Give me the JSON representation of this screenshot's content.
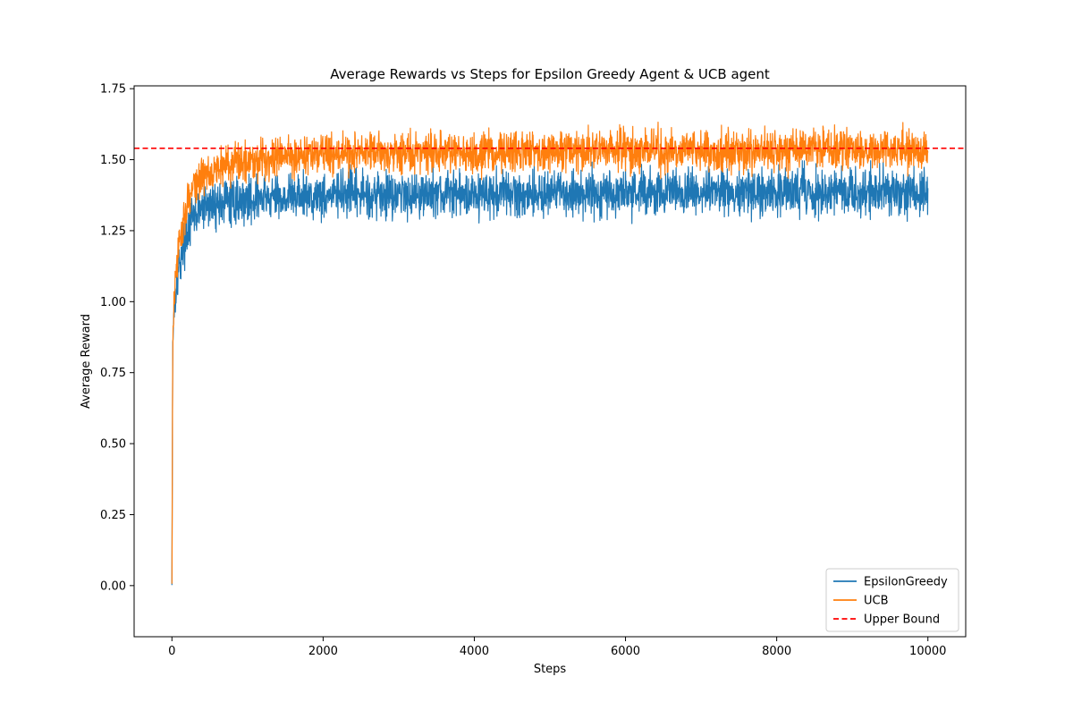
{
  "chart_data": {
    "type": "line",
    "title": "Average Rewards vs Steps for Epsilon Greedy Agent & UCB agent",
    "xlabel": "Steps",
    "ylabel": "Average Reward",
    "xlim": [
      -500,
      10500
    ],
    "ylim": [
      -0.18,
      1.76
    ],
    "xticks": [
      0,
      2000,
      4000,
      6000,
      8000,
      10000
    ],
    "xtick_labels": [
      "0",
      "2000",
      "4000",
      "6000",
      "8000",
      "10000"
    ],
    "yticks": [
      0.0,
      0.25,
      0.5,
      0.75,
      1.0,
      1.25,
      1.5,
      1.75
    ],
    "ytick_labels": [
      "0.00",
      "0.25",
      "0.50",
      "0.75",
      "1.00",
      "1.25",
      "1.50",
      "1.75"
    ],
    "grid": false,
    "legend_position": "lower right",
    "series": [
      {
        "name": "EpsilonGreedy",
        "color": "#1f77b4",
        "style": "solid",
        "noise": 0.04,
        "x": [
          0,
          10,
          25,
          50,
          100,
          150,
          200,
          300,
          400,
          500,
          700,
          1000,
          1500,
          2000,
          3000,
          4000,
          5000,
          6000,
          7000,
          8000,
          9000,
          10000
        ],
        "y": [
          0.0,
          0.85,
          0.97,
          1.05,
          1.13,
          1.2,
          1.25,
          1.3,
          1.33,
          1.34,
          1.35,
          1.36,
          1.37,
          1.375,
          1.38,
          1.38,
          1.38,
          1.385,
          1.385,
          1.385,
          1.385,
          1.385
        ]
      },
      {
        "name": "UCB",
        "color": "#ff7f0e",
        "style": "solid",
        "noise": 0.035,
        "x": [
          0,
          10,
          25,
          50,
          100,
          150,
          200,
          300,
          400,
          500,
          700,
          1000,
          1500,
          2000,
          3000,
          4000,
          5000,
          6000,
          7000,
          8000,
          9000,
          10000
        ],
        "y": [
          -0.02,
          0.82,
          0.98,
          1.08,
          1.2,
          1.28,
          1.35,
          1.41,
          1.44,
          1.46,
          1.48,
          1.5,
          1.515,
          1.52,
          1.525,
          1.525,
          1.53,
          1.53,
          1.53,
          1.53,
          1.535,
          1.535
        ]
      },
      {
        "name": "Upper Bound",
        "color": "#ff0000",
        "style": "dashed",
        "x": [
          -500,
          10500
        ],
        "y": [
          1.54,
          1.54
        ]
      }
    ]
  }
}
